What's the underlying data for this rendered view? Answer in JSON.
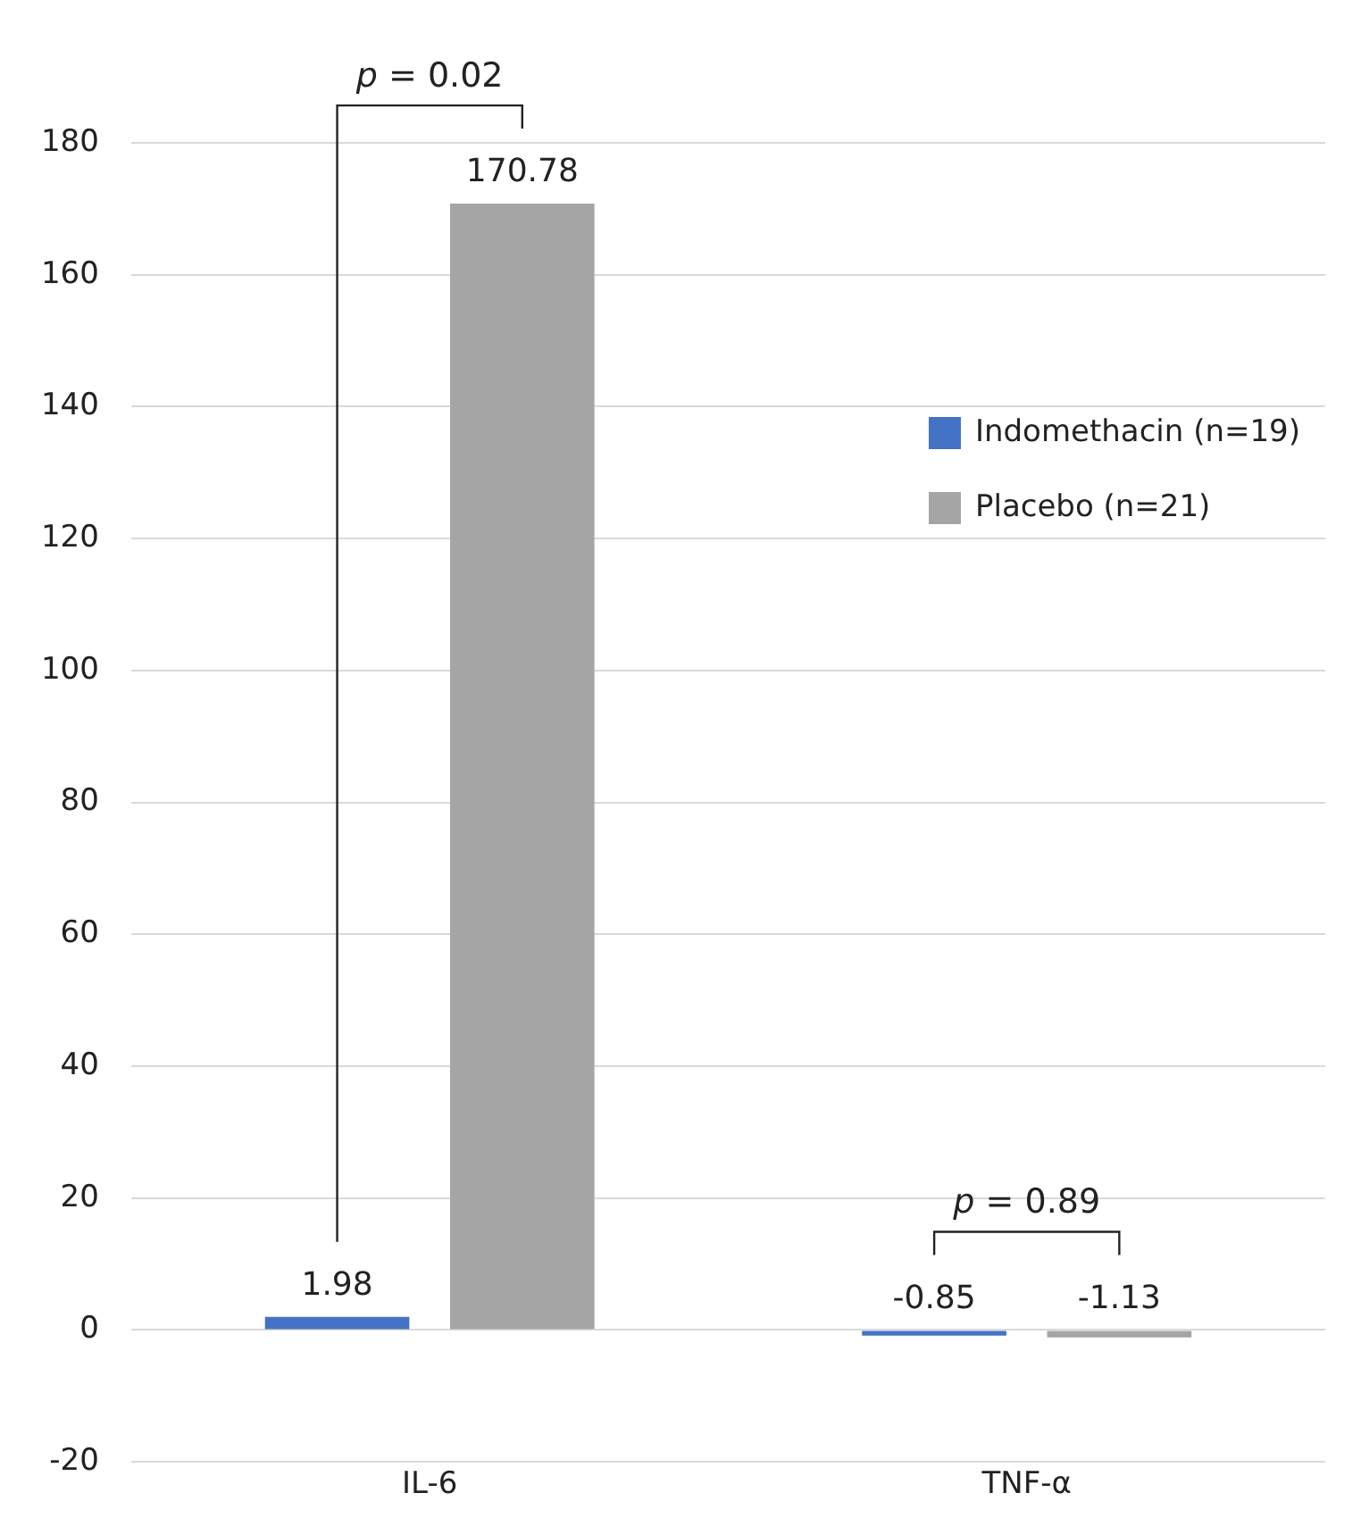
{
  "chart_data": {
    "type": "bar",
    "categories": [
      "IL-6",
      "TNF-α"
    ],
    "series": [
      {
        "name": "Indomethacin (n=19)",
        "color": "#4472c4",
        "values": [
          1.98,
          -0.85
        ]
      },
      {
        "name": "Placebo (n=21)",
        "color": "#a5a5a5",
        "values": [
          170.78,
          -1.13
        ]
      }
    ],
    "ylim": [
      -20,
      180
    ],
    "yticks": [
      -20,
      0,
      20,
      40,
      60,
      80,
      100,
      120,
      140,
      160,
      180
    ],
    "grid": "y",
    "legend": "right",
    "data_labels": true,
    "annotations": [
      "p = 0.02",
      "p = 0.89"
    ]
  }
}
